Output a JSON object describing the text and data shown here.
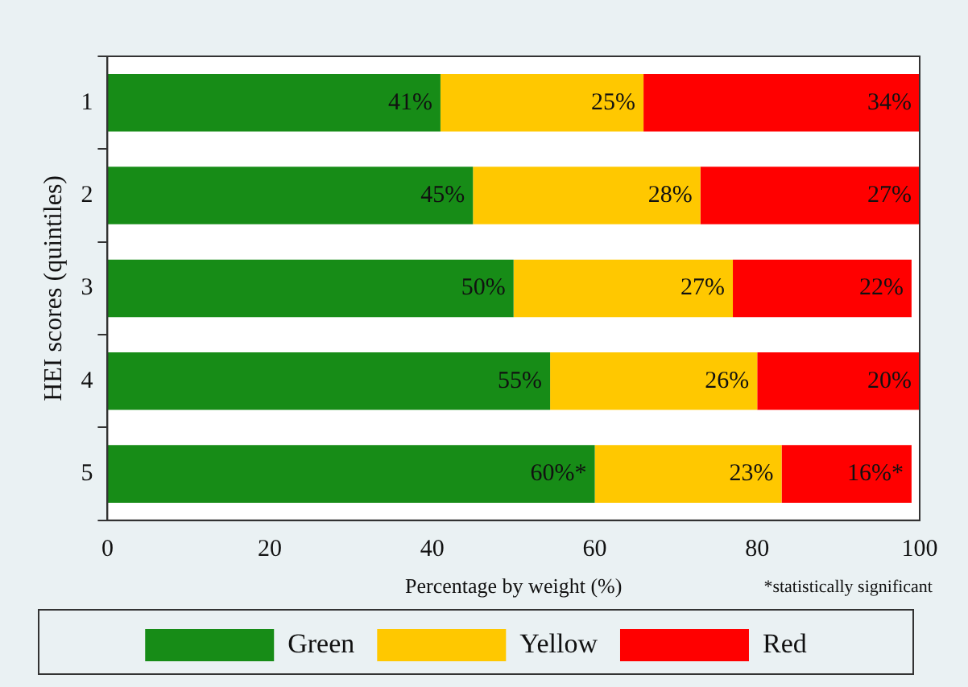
{
  "chart_data": {
    "type": "bar",
    "orientation": "horizontal",
    "stacked": true,
    "xlabel": "Percentage by weight (%)",
    "ylabel": "HEI scores (quintiles)",
    "categories": [
      "1",
      "2",
      "3",
      "4",
      "5"
    ],
    "series": [
      {
        "name": "Green",
        "color": "#178c17",
        "values": [
          41,
          45,
          50,
          54.5,
          60
        ],
        "value_labels": [
          "41%",
          "45%",
          "50%",
          "55%",
          "60%*"
        ]
      },
      {
        "name": "Yellow",
        "color": "#ffc800",
        "values": [
          25,
          28,
          27,
          25.5,
          23
        ],
        "value_labels": [
          "25%",
          "28%",
          "27%",
          "26%",
          "23%"
        ]
      },
      {
        "name": "Red",
        "color": "#ff0000",
        "values": [
          34,
          27,
          22,
          20,
          16
        ],
        "value_labels": [
          "34%",
          "27%",
          "22%",
          "20%",
          "16%*"
        ]
      }
    ],
    "xlim": [
      0,
      100
    ],
    "xticks": [
      0,
      20,
      40,
      60,
      80,
      100
    ],
    "grid": false,
    "legend": "bottom",
    "annotations": [
      "*statistically significant"
    ]
  }
}
